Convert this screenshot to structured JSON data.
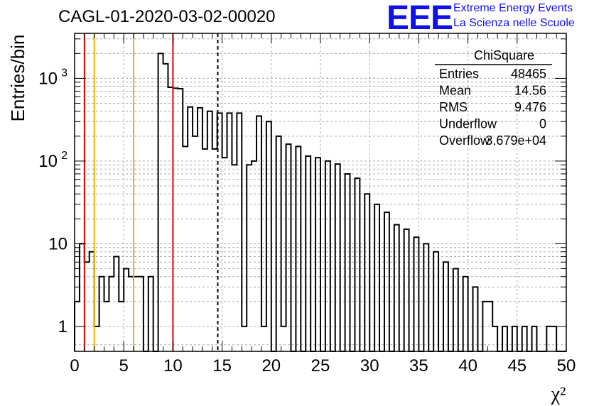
{
  "header": {
    "title": "CAGL-01-2020-03-02-00020",
    "logo_text": "EEE",
    "logo_line1": "Extreme Energy Events",
    "logo_line2": "La Scienza nelle Scuole",
    "logo_color": "#1010ee"
  },
  "stats_box": {
    "title": "ChiSquare",
    "rows": [
      {
        "label": "Entries",
        "value": "48465"
      },
      {
        "label": "Mean",
        "value": "14.56"
      },
      {
        "label": "RMS",
        "value": "9.476"
      },
      {
        "label": "Underflow",
        "value": "0"
      },
      {
        "label": "Overflow",
        "value": "3.679e+04"
      }
    ]
  },
  "chart_data": {
    "type": "histogram",
    "title": "CAGL-01-2020-03-02-00020",
    "xlabel": "χ²",
    "ylabel": "Entries/bin",
    "xlim": [
      0,
      50
    ],
    "ylim": [
      0.5,
      3500
    ],
    "y_scale": "log",
    "grid": true,
    "bin_width": 0.5,
    "x_ticks": [
      "0",
      "5",
      "10",
      "15",
      "20",
      "25",
      "30",
      "35",
      "40",
      "45",
      "50"
    ],
    "y_ticks": [
      {
        "value": 1,
        "label": "1"
      },
      {
        "value": 10,
        "label": "10"
      },
      {
        "value": 100,
        "label": "10",
        "exp": "2"
      },
      {
        "value": 1000,
        "label": "10",
        "exp": "3"
      }
    ],
    "bin_values": [
      2,
      10,
      6,
      8,
      1,
      4,
      2,
      4,
      7,
      2,
      5,
      4,
      4,
      4,
      0,
      4,
      0,
      2000,
      1500,
      780,
      760,
      750,
      150,
      450,
      200,
      440,
      140,
      400,
      140,
      380,
      110,
      380,
      90,
      380,
      1,
      90,
      100,
      350,
      1,
      300,
      0,
      200,
      1,
      160,
      0,
      150,
      0,
      115,
      0,
      110,
      0,
      100,
      0,
      92,
      0,
      70,
      0,
      62,
      0,
      40,
      0,
      30,
      0,
      24,
      0,
      17,
      0,
      15,
      0,
      12,
      0,
      10,
      0,
      8,
      0,
      6,
      0,
      5,
      0,
      4,
      0,
      3,
      0,
      2,
      2,
      1,
      0,
      1,
      0,
      1,
      0,
      1,
      0,
      1,
      0,
      0,
      1,
      1,
      0,
      0
    ],
    "vertical_lines": [
      {
        "x": 1,
        "color": "#dd0000",
        "style": "solid"
      },
      {
        "x": 2,
        "color": "#f0b000",
        "style": "solid"
      },
      {
        "x": 6,
        "color": "#f0b000",
        "style": "solid"
      },
      {
        "x": 10,
        "color": "#dd0000",
        "style": "solid"
      },
      {
        "x": 14.56,
        "color": "#000000",
        "style": "dashed"
      }
    ]
  }
}
